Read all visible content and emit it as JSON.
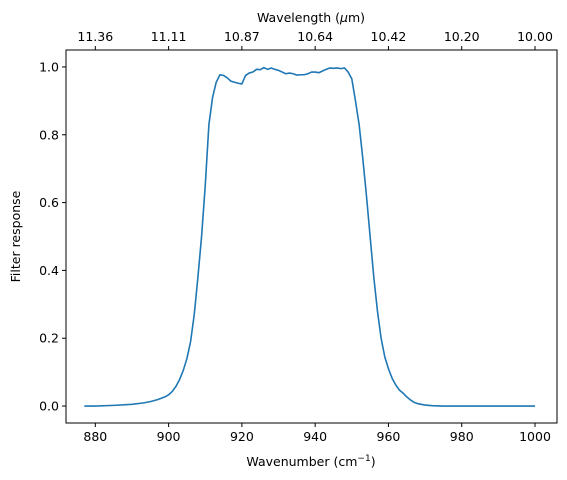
{
  "chart_data": {
    "type": "line",
    "xlabel": "Wavenumber (cm",
    "xlabel_sup": "−1",
    "xlabel_end": ")",
    "ylabel": "Filter response",
    "top_xlabel": "Wavelength (",
    "top_xlabel_mu": "μ",
    "top_xlabel_end": "m)",
    "xlim": [
      872,
      1006
    ],
    "ylim": [
      -0.05,
      1.05
    ],
    "x_ticks": [
      880,
      900,
      920,
      940,
      960,
      980,
      1000
    ],
    "x_tick_labels": [
      "880",
      "900",
      "920",
      "940",
      "960",
      "980",
      "1000"
    ],
    "y_ticks": [
      0.0,
      0.2,
      0.4,
      0.6,
      0.8,
      1.0
    ],
    "y_tick_labels": [
      "0.0",
      "0.2",
      "0.4",
      "0.6",
      "0.8",
      "1.0"
    ],
    "top_ticks": [
      880,
      900,
      920,
      940,
      960,
      980,
      1000
    ],
    "top_tick_labels": [
      "11.36",
      "11.11",
      "10.87",
      "10.64",
      "10.42",
      "10.20",
      "10.00"
    ],
    "grid": false,
    "series": [
      {
        "color": "#1f77b4",
        "x": [
          877,
          880,
          885,
          890,
          893,
          895,
          897,
          899,
          900,
          901,
          902,
          903,
          904,
          905,
          906,
          907,
          908,
          909,
          910,
          911,
          912,
          913,
          914,
          915,
          916,
          917,
          918,
          919,
          920,
          921,
          922,
          923,
          924,
          925,
          926,
          927,
          928,
          929,
          930,
          931,
          932,
          933,
          934,
          935,
          936,
          937,
          938,
          939,
          940,
          941,
          942,
          943,
          944,
          945,
          946,
          947,
          948,
          949,
          950,
          951,
          952,
          953,
          954,
          955,
          956,
          957,
          958,
          959,
          960,
          961,
          962,
          963,
          964,
          965,
          966,
          967,
          968,
          970,
          972,
          975,
          980,
          985,
          990,
          1000
        ],
        "y": [
          0.0,
          0.0,
          0.002,
          0.005,
          0.009,
          0.013,
          0.019,
          0.027,
          0.033,
          0.043,
          0.058,
          0.078,
          0.105,
          0.14,
          0.19,
          0.27,
          0.38,
          0.5,
          0.65,
          0.83,
          0.91,
          0.955,
          0.977,
          0.975,
          0.968,
          0.958,
          0.955,
          0.952,
          0.95,
          0.975,
          0.982,
          0.985,
          0.993,
          0.992,
          0.998,
          0.993,
          0.997,
          0.993,
          0.99,
          0.985,
          0.98,
          0.982,
          0.98,
          0.976,
          0.977,
          0.977,
          0.98,
          0.985,
          0.985,
          0.983,
          0.988,
          0.993,
          0.997,
          0.996,
          0.997,
          0.995,
          0.997,
          0.985,
          0.965,
          0.9,
          0.83,
          0.73,
          0.62,
          0.5,
          0.38,
          0.28,
          0.2,
          0.145,
          0.11,
          0.082,
          0.062,
          0.047,
          0.038,
          0.027,
          0.018,
          0.011,
          0.007,
          0.003,
          0.001,
          0.0,
          0.0,
          0.0,
          0.0,
          0.0
        ]
      }
    ]
  }
}
